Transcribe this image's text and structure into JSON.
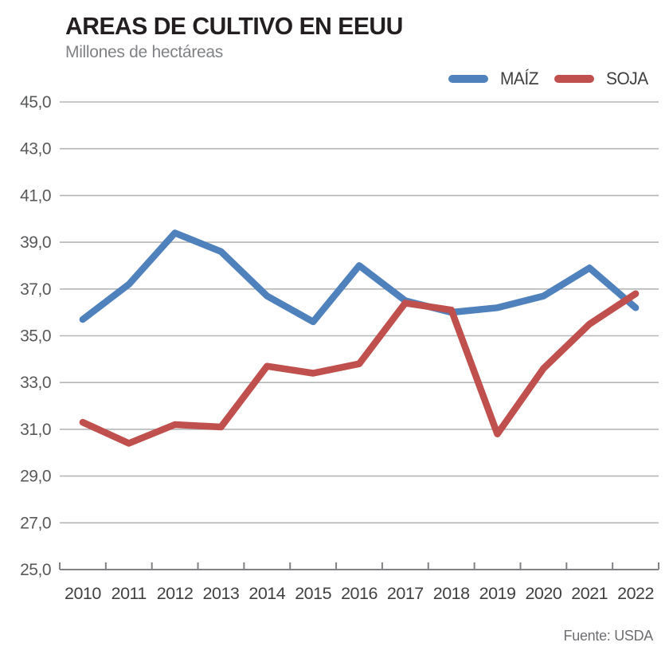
{
  "header": {
    "title": "AREAS DE CULTIVO EN EEUU",
    "subtitle": "Millones de hectáreas"
  },
  "footer": {
    "source": "Fuente: USDA"
  },
  "chart_data": {
    "type": "line",
    "title": "AREAS DE CULTIVO EN EEUU",
    "subtitle": "Millones de hectáreas",
    "xlabel": "",
    "ylabel": "Millones de hectáreas",
    "categories": [
      "2010",
      "2011",
      "2012",
      "2013",
      "2014",
      "2015",
      "2016",
      "2017",
      "2018",
      "2019",
      "2020",
      "2021",
      "2022"
    ],
    "series": [
      {
        "name": "MAÍZ",
        "color": "#4f81bd",
        "values": [
          35.7,
          37.2,
          39.4,
          38.6,
          36.7,
          35.6,
          38.0,
          36.5,
          36.0,
          36.2,
          36.7,
          37.9,
          36.2
        ]
      },
      {
        "name": "SOJA",
        "color": "#c0504d",
        "values": [
          31.3,
          30.4,
          31.2,
          31.1,
          33.7,
          33.4,
          33.8,
          36.4,
          36.1,
          30.8,
          33.6,
          35.5,
          36.8
        ]
      }
    ],
    "ylim": [
      25,
      45
    ],
    "yticks": [
      25,
      27,
      29,
      31,
      33,
      35,
      37,
      39,
      41,
      43,
      45
    ],
    "ytick_labels": [
      "25,0",
      "27,0",
      "29,0",
      "31,0",
      "33,0",
      "35,0",
      "37,0",
      "39,0",
      "41,0",
      "43,0",
      "45,0"
    ],
    "grid": true,
    "legend_position": "top-right",
    "source": "Fuente: USDA",
    "style": {
      "grid_color": "#b4b6b8",
      "axis_color": "#808285",
      "ytick_text_color": "#58595b",
      "xtick_text_color": "#414042",
      "line_width": 8.5
    }
  }
}
